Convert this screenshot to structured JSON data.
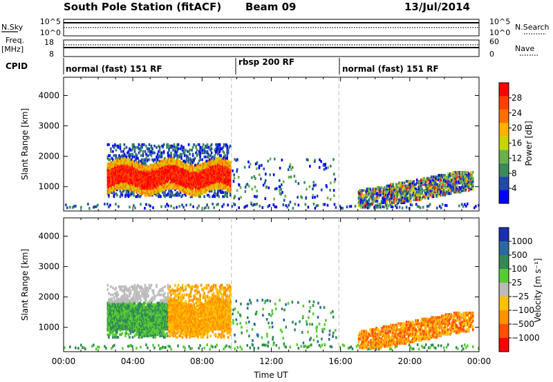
{
  "header": {
    "station": "South Pole Station (fitACF)",
    "beam": "Beam 09",
    "date": "13/Jul/2014"
  },
  "panels": {
    "nsky_label": "N.Sky",
    "nsearch_label": "N.Search",
    "nsky_ticks": [
      "10^5",
      "10^0"
    ],
    "nsearch_ticks": [
      "10^5",
      "10^0"
    ],
    "freq_label": "Freq.",
    "freq_unit": "[MHz]",
    "freq_ticks": [
      "18",
      "8"
    ],
    "nave_label": "Nave",
    "nave_ticks": [
      "60",
      "0"
    ],
    "cpid_label": "CPID",
    "cpid_segments": [
      {
        "label": "normal (fast) 151 RF"
      },
      {
        "label": "rbsp 200 RF"
      },
      {
        "label": "normal (fast) 151 RF"
      }
    ]
  },
  "colors": {
    "power_scale": [
      "#0000ff",
      "#1f4aa8",
      "#3a8a5a",
      "#6ab04c",
      "#c8d400",
      "#ffb000",
      "#ff7000",
      "#ff4000",
      "#ff0000"
    ],
    "velocity_scale": [
      "#ff0000",
      "#ff5000",
      "#ff9000",
      "#ffc000",
      "#bbbbbb",
      "#55cc33",
      "#338855",
      "#2a6aa0",
      "#1a30b0"
    ]
  },
  "chart_data": [
    {
      "type": "heatmap",
      "name": "power",
      "ylabel": "Slant Range [km]",
      "xlabel": "",
      "ylim": [
        200,
        4600
      ],
      "xlim": [
        0,
        24
      ],
      "yticks": [
        "1000",
        "2000",
        "3000",
        "4000"
      ],
      "xticks": [
        "00:00",
        "04:00",
        "08:00",
        "12:00",
        "16:00",
        "20:00",
        "00:00"
      ],
      "colorbar": {
        "label": "Power [dB]",
        "ticks": [
          "4",
          "8",
          "12",
          "16",
          "20",
          "24",
          "28"
        ],
        "range": [
          0,
          32
        ]
      },
      "mode_change_times": [
        9.7,
        15.9
      ]
    },
    {
      "type": "heatmap",
      "name": "velocity",
      "ylabel": "Slant Range [km]",
      "xlabel": "Time UT",
      "ylim": [
        200,
        4600
      ],
      "xlim": [
        0,
        24
      ],
      "yticks": [
        "1000",
        "2000",
        "3000",
        "4000"
      ],
      "xticks": [
        "00:00",
        "04:00",
        "08:00",
        "12:00",
        "16:00",
        "20:00",
        "00:00"
      ],
      "colorbar": {
        "label": "Velocity [m s⁻¹]",
        "ticks": [
          "1000",
          "500",
          "100",
          "25",
          "−25",
          "−100",
          "−500",
          "−1000"
        ]
      },
      "mode_change_times": [
        9.7,
        15.9
      ]
    }
  ]
}
